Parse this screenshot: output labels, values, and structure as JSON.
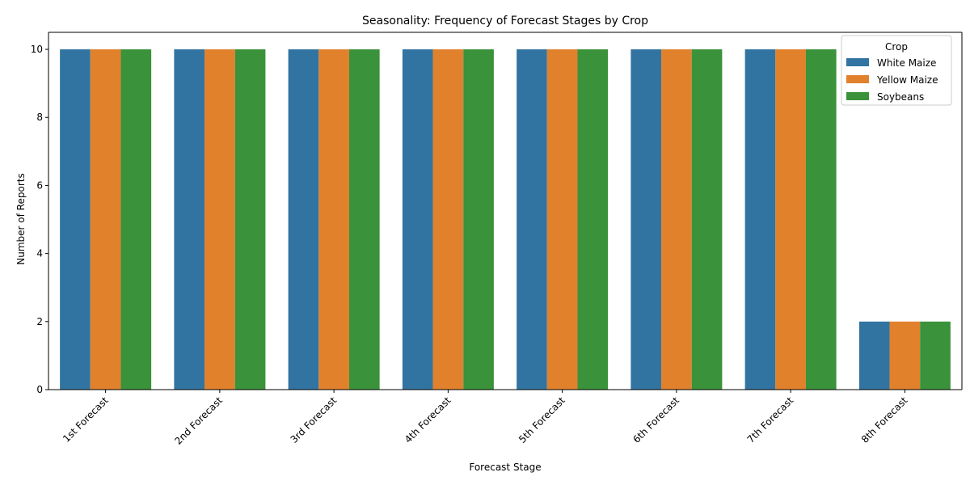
{
  "chart_data": {
    "type": "bar",
    "title": "Seasonality: Frequency of Forecast Stages by Crop",
    "xlabel": "Forecast Stage",
    "ylabel": "Number of Reports",
    "categories": [
      "1st Forecast",
      "2nd Forecast",
      "3rd Forecast",
      "4th Forecast",
      "5th Forecast",
      "6th Forecast",
      "7th Forecast",
      "8th Forecast"
    ],
    "series": [
      {
        "name": "White Maize",
        "color": "#3274a1",
        "values": [
          10,
          10,
          10,
          10,
          10,
          10,
          10,
          2
        ]
      },
      {
        "name": "Yellow Maize",
        "color": "#e1812c",
        "values": [
          10,
          10,
          10,
          10,
          10,
          10,
          10,
          2
        ]
      },
      {
        "name": "Soybeans",
        "color": "#3a923a",
        "values": [
          10,
          10,
          10,
          10,
          10,
          10,
          10,
          2
        ]
      }
    ],
    "ylim": [
      0,
      10.5
    ],
    "yticks": [
      0,
      2,
      4,
      6,
      8,
      10
    ],
    "grid": false,
    "legend": {
      "title": "Crop",
      "placement": "top-right"
    }
  }
}
